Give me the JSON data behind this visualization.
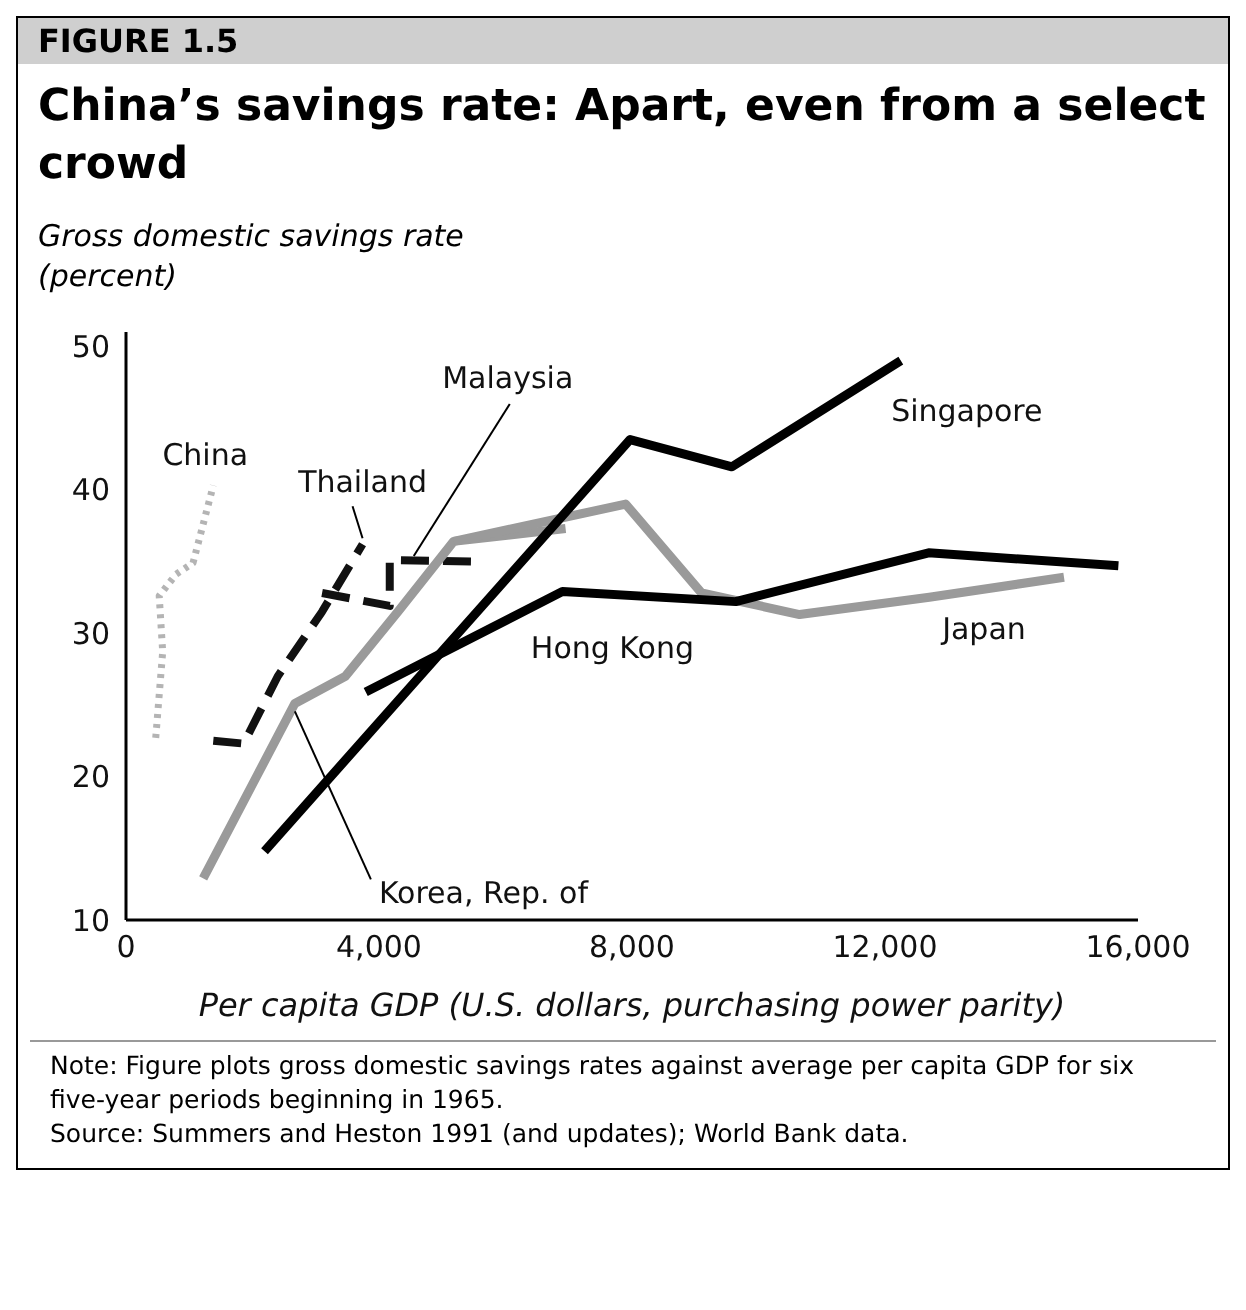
{
  "chart_data": {
    "type": "line",
    "title": "China’s savings rate: Apart, even from a select crowd",
    "ylabel": "Gross domestic savings rate (percent)",
    "xlabel": "Per capita GDP (U.S. dollars, purchasing power parity)",
    "annotations": [
      "FIGURE 1.5",
      "Note: Figure plots gross domestic savings rates against average per capita GDP for six five-year periods beginning in 1965.",
      "Source: Summers and Heston 1991 (and updates); World Bank data."
    ],
    "xlim": [
      0,
      16000
    ],
    "xticks": [
      0,
      {
        "value": 4000,
        "label": "4,000"
      },
      {
        "value": 8000,
        "label": "8,000"
      },
      {
        "value": 12000,
        "label": "12,000"
      },
      {
        "value": 16000,
        "label": "16,000"
      }
    ],
    "ylim": [
      10,
      51
    ],
    "yticks": [
      10,
      20,
      30,
      40,
      50
    ],
    "grid": false,
    "marker": "none",
    "series": [
      {
        "name": "China",
        "color": "#b4b4b4",
        "line_style": "dotted",
        "x": [
          470,
          580,
          525,
          790,
          1060,
          1380
        ],
        "values": [
          22.7,
          28.7,
          32.6,
          34.1,
          34.9,
          40.3
        ]
      },
      {
        "name": "Thailand",
        "color": "#111111",
        "line_style": "dashed",
        "x": [
          1380,
          1860,
          2400,
          3100,
          3740
        ],
        "values": [
          22.5,
          22.3,
          27.0,
          31.5,
          36.2
        ]
      },
      {
        "name": "Malaysia",
        "color": "#111111",
        "line_style": "dashed",
        "x": [
          3100,
          4170,
          4170,
          5510
        ],
        "values": [
          32.8,
          31.9,
          35.1,
          35.0
        ]
      },
      {
        "name": "Korea, Rep. of",
        "color": "#9a9a9a",
        "line_style": "solid",
        "x": [
          1220,
          2670,
          3470,
          4300,
          5180,
          6950
        ],
        "values": [
          12.9,
          25.1,
          27.0,
          31.5,
          36.4,
          37.3
        ]
      },
      {
        "name": "Japan",
        "color": "#9a9a9a",
        "line_style": "solid",
        "x": [
          5180,
          7900,
          9100,
          10650,
          12700,
          14830
        ],
        "values": [
          36.4,
          39.0,
          32.8,
          31.3,
          32.5,
          33.9
        ]
      },
      {
        "name": "Hong Kong",
        "color": "#000000",
        "line_style": "solid",
        "x": [
          3790,
          6900,
          9640,
          12690,
          15690
        ],
        "values": [
          25.9,
          32.9,
          32.2,
          35.6,
          34.7
        ]
      },
      {
        "name": "Singapore",
        "color": "#000000",
        "line_style": "solid",
        "x": [
          2190,
          7970,
          9580,
          12250
        ],
        "values": [
          14.8,
          43.5,
          41.6,
          49.0
        ]
      }
    ]
  }
}
